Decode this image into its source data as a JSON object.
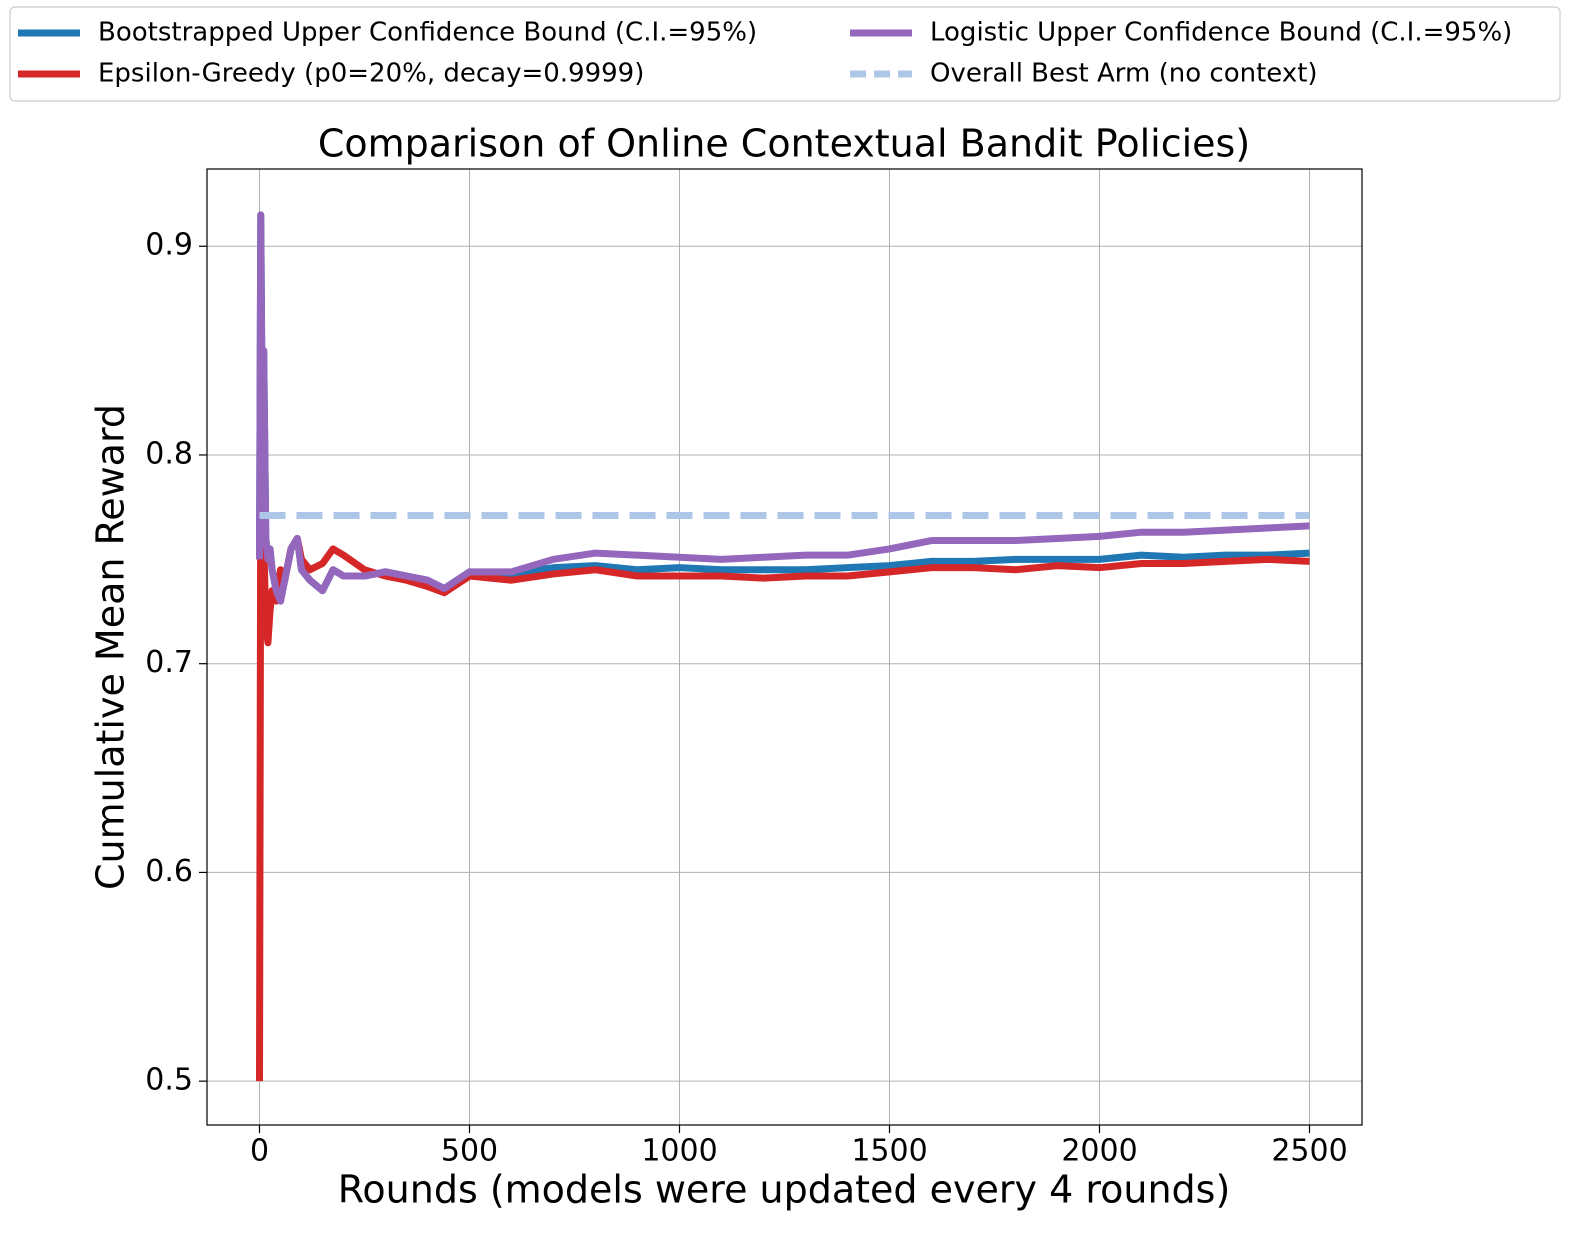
{
  "chart_data": {
    "type": "line",
    "title": "Comparison of Online Contextual Bandit Policies)",
    "xlabel": "Rounds (models were updated every 4 rounds)",
    "ylabel": "Cumulative Mean Reward",
    "x": [
      0,
      3,
      6,
      10,
      15,
      20,
      25,
      30,
      40,
      50,
      60,
      75,
      90,
      100,
      120,
      150,
      175,
      200,
      250,
      300,
      350,
      400,
      440,
      500,
      600,
      700,
      800,
      900,
      1000,
      1100,
      1200,
      1300,
      1400,
      1500,
      1600,
      1700,
      1800,
      1900,
      2000,
      2100,
      2200,
      2300,
      2400,
      2500
    ],
    "series": [
      {
        "name": "Bootstrapped Upper Confidence Bound (C.I.=95%)",
        "color": "#1f77b4",
        "values": [
          0.75,
          0.915,
          0.83,
          0.85,
          0.76,
          0.75,
          0.755,
          0.745,
          0.735,
          0.73,
          0.74,
          0.755,
          0.76,
          0.745,
          0.74,
          0.735,
          0.745,
          0.742,
          0.742,
          0.744,
          0.742,
          0.74,
          0.736,
          0.744,
          0.743,
          0.746,
          0.747,
          0.745,
          0.746,
          0.745,
          0.745,
          0.745,
          0.746,
          0.747,
          0.749,
          0.749,
          0.75,
          0.75,
          0.75,
          0.752,
          0.751,
          0.752,
          0.752,
          0.753
        ]
      },
      {
        "name": "Epsilon-Greedy (p0=20%, decay=0.9999)",
        "color": "#d62728",
        "values": [
          0.5,
          0.79,
          0.75,
          0.76,
          0.72,
          0.71,
          0.725,
          0.735,
          0.73,
          0.745,
          0.74,
          0.755,
          0.76,
          0.75,
          0.745,
          0.748,
          0.755,
          0.752,
          0.745,
          0.742,
          0.74,
          0.737,
          0.734,
          0.742,
          0.74,
          0.743,
          0.745,
          0.742,
          0.742,
          0.742,
          0.741,
          0.742,
          0.742,
          0.744,
          0.746,
          0.746,
          0.745,
          0.747,
          0.746,
          0.748,
          0.748,
          0.749,
          0.75,
          0.749
        ]
      },
      {
        "name": "Logistic Upper Confidence Bound (C.I.=95%)",
        "color": "#9467bd",
        "values": [
          0.75,
          0.915,
          0.83,
          0.85,
          0.76,
          0.75,
          0.755,
          0.745,
          0.735,
          0.73,
          0.74,
          0.755,
          0.76,
          0.745,
          0.74,
          0.735,
          0.745,
          0.742,
          0.742,
          0.744,
          0.742,
          0.74,
          0.736,
          0.744,
          0.744,
          0.75,
          0.753,
          0.752,
          0.751,
          0.75,
          0.751,
          0.752,
          0.752,
          0.755,
          0.759,
          0.759,
          0.759,
          0.76,
          0.761,
          0.763,
          0.763,
          0.764,
          0.765,
          0.766
        ]
      },
      {
        "name": "Overall Best Arm (no context)",
        "color": "#aec7e8",
        "dashed": true,
        "x": [
          0,
          2500
        ],
        "values": [
          0.771,
          0.771
        ]
      }
    ],
    "xlim": [
      -125,
      2625
    ],
    "ylim": [
      0.479,
      0.937
    ],
    "xticks": [
      0,
      500,
      1000,
      1500,
      2000,
      2500
    ],
    "yticks": [
      0.5,
      0.6,
      0.7,
      0.8,
      0.9
    ],
    "grid": true,
    "legend_position": "top"
  }
}
